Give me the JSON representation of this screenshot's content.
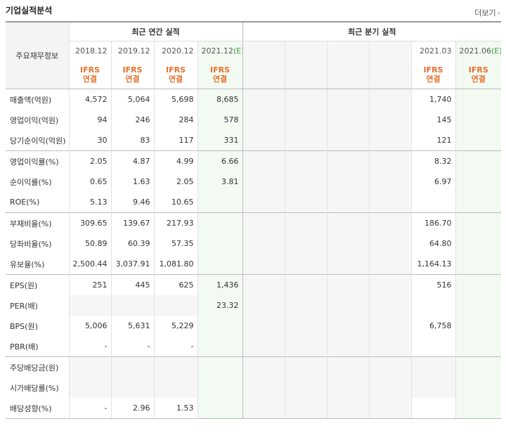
{
  "header": {
    "title": "기업실적분석",
    "more": "더보기",
    "more_arrow": "›"
  },
  "table": {
    "label_header": "주요재무정보",
    "annual_group": "최근 연간 실적",
    "quarter_group": "최근 분기 실적",
    "columns": [
      {
        "period": "2018.12",
        "standard": "IFRS",
        "basis": "연결"
      },
      {
        "period": "2019.12",
        "standard": "IFRS",
        "basis": "연결"
      },
      {
        "period": "2020.12",
        "standard": "IFRS",
        "basis": "연결"
      },
      {
        "period": "2021.12",
        "estimate": "(E)",
        "standard": "IFRS",
        "basis": "연결"
      },
      null,
      null,
      null,
      null,
      {
        "period": "2021.03",
        "standard": "IFRS",
        "basis": "연결"
      },
      {
        "period": "2021.06",
        "estimate": "(E)",
        "standard": "IFRS",
        "basis": "연결"
      }
    ],
    "rows": [
      {
        "label": "매출액(억원)",
        "values": [
          "4,572",
          "5,064",
          "5,698",
          "8,685",
          null,
          null,
          null,
          null,
          "1,740",
          null
        ]
      },
      {
        "label": "영업이익(억원)",
        "values": [
          "94",
          "246",
          "284",
          "578",
          null,
          null,
          null,
          null,
          "145",
          null
        ]
      },
      {
        "label": "당기순이익(억원)",
        "values": [
          "30",
          "83",
          "117",
          "331",
          null,
          null,
          null,
          null,
          "121",
          null
        ]
      },
      {
        "label": "영업이익률(%)",
        "values": [
          "2.05",
          "4.87",
          "4.99",
          "6.66",
          null,
          null,
          null,
          null,
          "8.32",
          null
        ]
      },
      {
        "label": "순이익률(%)",
        "values": [
          "0.65",
          "1.63",
          "2.05",
          "3.81",
          null,
          null,
          null,
          null,
          "6.97",
          null
        ]
      },
      {
        "label": "ROE(%)",
        "values": [
          "5.13",
          "9.46",
          "10.65",
          null,
          null,
          null,
          null,
          null,
          null,
          null
        ]
      },
      {
        "label": "부채비율(%)",
        "values": [
          "309.65",
          "139.67",
          "217.93",
          null,
          null,
          null,
          null,
          null,
          "186.70",
          null
        ]
      },
      {
        "label": "당좌비율(%)",
        "values": [
          "50.89",
          "60.39",
          "57.35",
          null,
          null,
          null,
          null,
          null,
          "64.80",
          null
        ]
      },
      {
        "label": "유보율(%)",
        "values": [
          "2,500.44",
          "3,037.91",
          "1,081.80",
          null,
          null,
          null,
          null,
          null,
          "1,164.13",
          null
        ]
      },
      {
        "label": "EPS(원)",
        "values": [
          "251",
          "445",
          "625",
          "1,436",
          null,
          null,
          null,
          null,
          "516",
          null
        ]
      },
      {
        "label": "PER(배)",
        "values": [
          null,
          null,
          null,
          "23.32",
          null,
          null,
          null,
          null,
          null,
          null
        ]
      },
      {
        "label": "BPS(원)",
        "values": [
          "5,006",
          "5,631",
          "5,229",
          null,
          null,
          null,
          null,
          null,
          "6,758",
          null
        ]
      },
      {
        "label": "PBR(배)",
        "values": [
          "-",
          "-",
          "-",
          null,
          null,
          null,
          null,
          null,
          null,
          null
        ]
      },
      {
        "label": "주당배당금(원)",
        "values": [
          null,
          null,
          null,
          null,
          null,
          null,
          null,
          null,
          null,
          null
        ]
      },
      {
        "label": "시가배당률(%)",
        "values": [
          null,
          null,
          null,
          null,
          null,
          null,
          null,
          null,
          null,
          null
        ]
      },
      {
        "label": "배당성향(%)",
        "values": [
          "-",
          "2.96",
          "1.53",
          null,
          null,
          null,
          null,
          null,
          null,
          null
        ]
      }
    ]
  }
}
